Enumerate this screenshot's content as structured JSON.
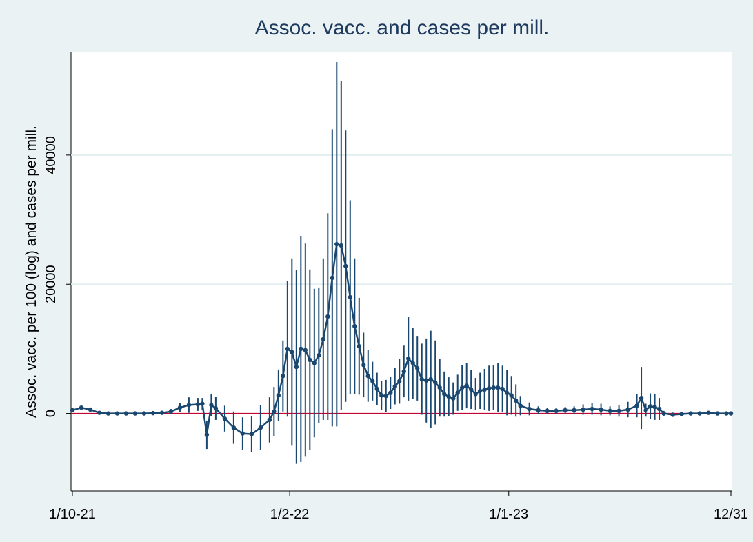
{
  "chart_data": {
    "type": "line-errorbar",
    "title": "Assoc. vacc. and cases per mill.",
    "y_label": "Assoc. vacc. per 100 (log) and cases per mill.",
    "x": [
      0,
      2,
      4,
      6,
      8,
      10,
      12,
      14,
      16,
      18,
      20,
      22,
      24,
      26,
      28,
      29,
      30,
      31,
      32,
      34,
      36,
      38,
      40,
      42,
      44,
      45,
      46,
      47,
      48,
      49,
      50,
      51,
      52,
      53,
      54,
      55,
      56,
      57,
      58,
      59,
      60,
      61,
      62,
      63,
      64,
      65,
      66,
      67,
      68,
      69,
      70,
      71,
      72,
      73,
      74,
      75,
      76,
      77,
      78,
      79,
      80,
      81,
      82,
      83,
      84,
      85,
      86,
      87,
      88,
      89,
      90,
      91,
      92,
      93,
      94,
      95,
      96,
      97,
      98,
      99,
      100,
      102,
      104,
      106,
      108,
      110,
      112,
      114,
      116,
      118,
      120,
      122,
      124,
      126,
      127,
      128,
      129,
      130,
      131,
      132,
      134,
      136,
      138,
      140,
      142,
      144,
      146,
      147
    ],
    "values": [
      500,
      900,
      600,
      100,
      0,
      0,
      0,
      0,
      0,
      50,
      100,
      300,
      900,
      1300,
      1400,
      1500,
      -3300,
      1300,
      800,
      -800,
      -2200,
      -3100,
      -3200,
      -2200,
      -1000,
      300,
      2800,
      5800,
      10000,
      9500,
      7200,
      10000,
      9800,
      8300,
      7800,
      9000,
      11500,
      15000,
      21000,
      26200,
      26000,
      22800,
      18000,
      13500,
      10400,
      7500,
      5800,
      5000,
      3800,
      2800,
      2700,
      3200,
      4200,
      5000,
      6500,
      8500,
      7800,
      7000,
      5300,
      5100,
      5300,
      4800,
      4000,
      3000,
      2600,
      2300,
      3200,
      4000,
      4300,
      3700,
      3000,
      3500,
      3700,
      3900,
      4000,
      4000,
      3800,
      3200,
      2800,
      2000,
      1200,
      700,
      500,
      400,
      400,
      500,
      500,
      600,
      700,
      600,
      400,
      400,
      600,
      1200,
      2400,
      500,
      1100,
      1000,
      700,
      0,
      -200,
      -100,
      0,
      0,
      100,
      0,
      0,
      0
    ],
    "errors": [
      300,
      200,
      200,
      200,
      300,
      300,
      300,
      300,
      300,
      300,
      300,
      400,
      700,
      1200,
      1000,
      900,
      2200,
      1700,
      1800,
      2000,
      2500,
      2500,
      2800,
      3500,
      3500,
      3800,
      4000,
      5500,
      10500,
      14500,
      15000,
      17500,
      16500,
      14000,
      11500,
      10500,
      12500,
      16000,
      23000,
      28200,
      25500,
      21000,
      15000,
      10500,
      7500,
      5000,
      4000,
      3000,
      2500,
      2200,
      2500,
      2500,
      2800,
      3500,
      4000,
      6500,
      5500,
      5000,
      5500,
      6500,
      7500,
      6500,
      4500,
      3500,
      3000,
      2500,
      2800,
      3500,
      3500,
      3000,
      2500,
      2800,
      3200,
      3500,
      3500,
      3800,
      3600,
      3500,
      3000,
      2500,
      1500,
      1000,
      600,
      500,
      500,
      500,
      600,
      800,
      900,
      900,
      700,
      900,
      1200,
      1800,
      4800,
      1000,
      2000,
      2000,
      1700,
      400,
      200,
      200,
      200,
      200,
      200,
      200,
      200,
      200
    ],
    "color": "#1a476f",
    "xlim": [
      0,
      147
    ],
    "xticks": [
      {
        "value": 0,
        "label": "1/10-21"
      },
      {
        "value": 48.5,
        "label": "1/2-22"
      },
      {
        "value": 97.4,
        "label": "1/1-23"
      },
      {
        "value": 147,
        "label": "12/31"
      }
    ],
    "ylim": [
      -12000,
      56000
    ],
    "yticks": [
      0,
      20000,
      40000
    ],
    "grid": true,
    "hline": 0,
    "hline_color": "#c10534"
  }
}
